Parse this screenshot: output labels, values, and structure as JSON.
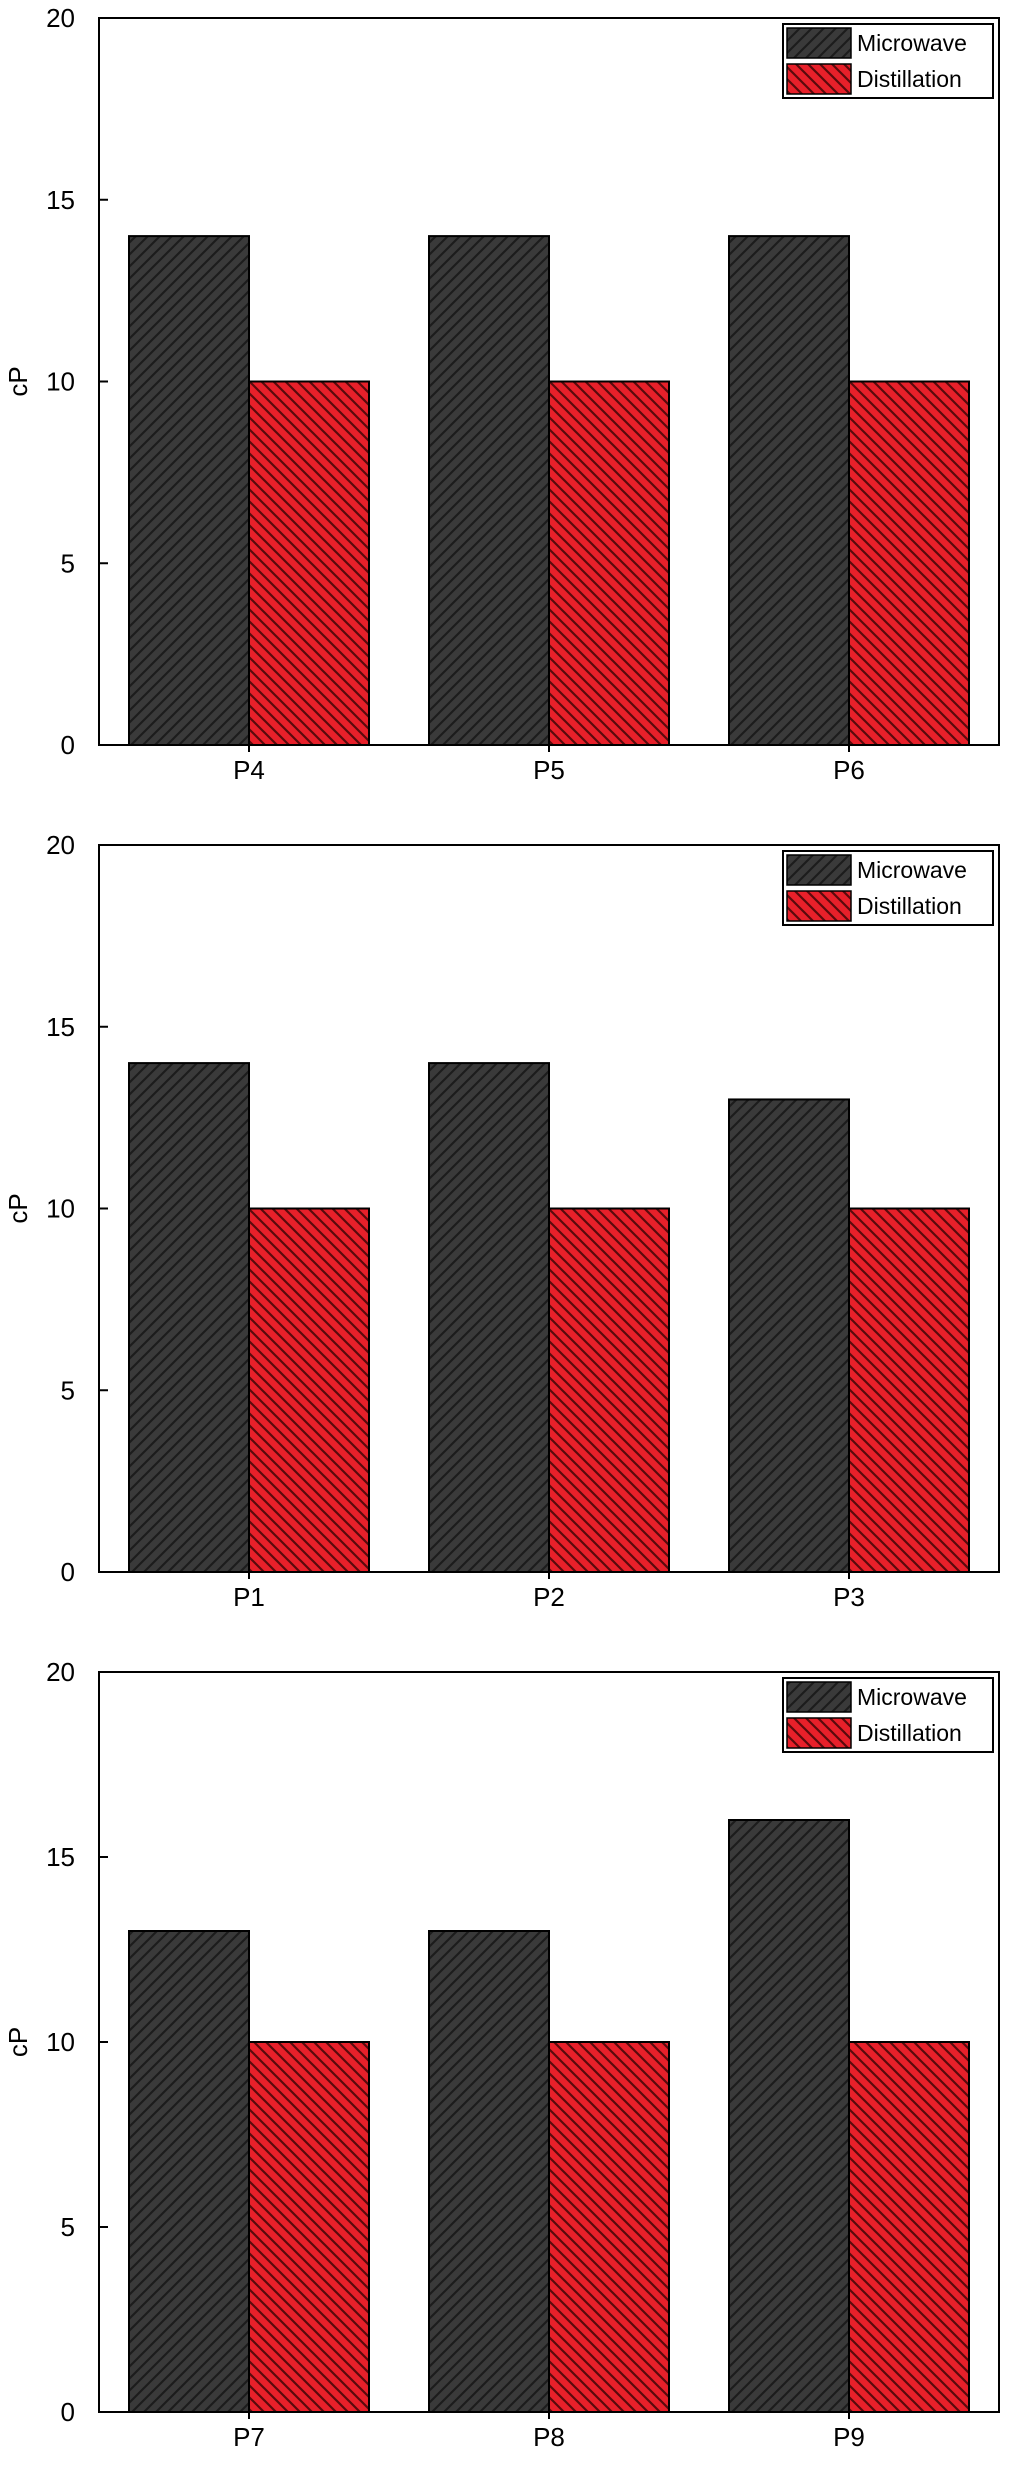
{
  "colors": {
    "microwave_fill": "#3a3a3a",
    "microwave_hatch": "#1c1c1c",
    "distillation_fill": "#e8202a",
    "distillation_hatch": "#5a0a0c",
    "axis": "#000000"
  },
  "chart_data": [
    {
      "type": "bar",
      "title": "",
      "xlabel": "",
      "ylabel": "cP",
      "ylim": [
        0,
        20
      ],
      "yticks": [
        0,
        5,
        10,
        15,
        20
      ],
      "grid": false,
      "legend_position": "top-right",
      "categories": [
        "P4",
        "P5",
        "P6"
      ],
      "series": [
        {
          "name": "Microwave",
          "values": [
            14,
            14,
            14
          ]
        },
        {
          "name": "Distillation",
          "values": [
            10,
            10,
            10
          ]
        }
      ]
    },
    {
      "type": "bar",
      "title": "",
      "xlabel": "",
      "ylabel": "cP",
      "ylim": [
        0,
        20
      ],
      "yticks": [
        0,
        5,
        10,
        15,
        20
      ],
      "grid": false,
      "legend_position": "top-right",
      "categories": [
        "P1",
        "P2",
        "P3"
      ],
      "series": [
        {
          "name": "Microwave",
          "values": [
            14,
            14,
            13
          ]
        },
        {
          "name": "Distillation",
          "values": [
            10,
            10,
            10
          ]
        }
      ]
    },
    {
      "type": "bar",
      "title": "",
      "xlabel": "",
      "ylabel": "cP",
      "ylim": [
        0,
        20
      ],
      "yticks": [
        0,
        5,
        10,
        15,
        20
      ],
      "grid": false,
      "legend_position": "top-right",
      "categories": [
        "P7",
        "P8",
        "P9"
      ],
      "series": [
        {
          "name": "Microwave",
          "values": [
            13,
            13,
            16
          ]
        },
        {
          "name": "Distillation",
          "values": [
            10,
            10,
            10
          ]
        }
      ]
    }
  ]
}
